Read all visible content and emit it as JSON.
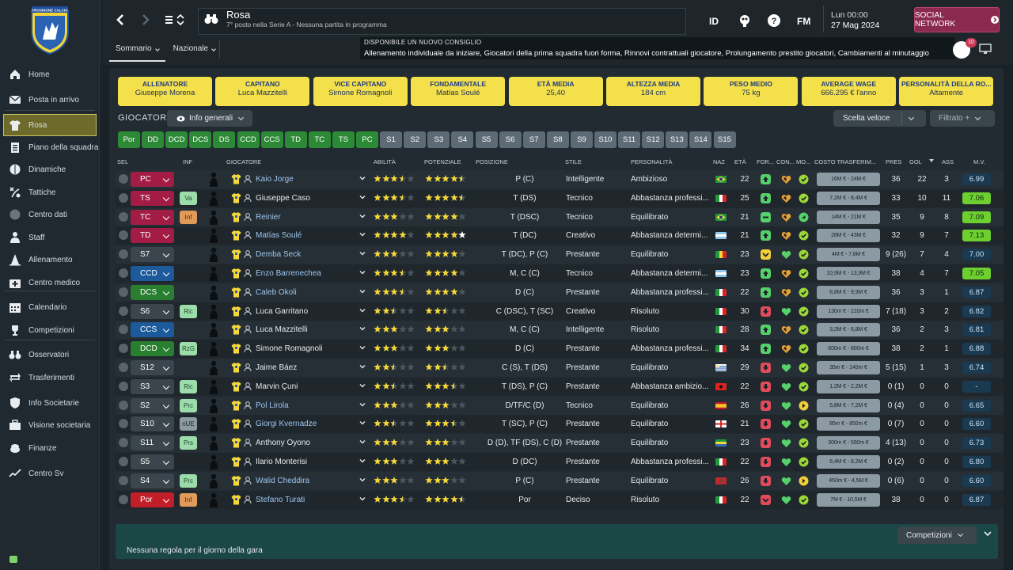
{
  "club": {
    "crest_text": "FROSINONE CALCIO"
  },
  "sidebar": {
    "items": [
      {
        "label": "Home",
        "icon": "home-icon"
      },
      {
        "label": "Posta in arrivo",
        "icon": "mail-icon"
      },
      {
        "label": "Rosa",
        "icon": "shirt-icon",
        "active": true
      },
      {
        "label": "Piano della squadra",
        "icon": "clipboard-icon"
      },
      {
        "label": "Dinamiche",
        "icon": "brain-icon"
      },
      {
        "label": "Tattiche",
        "icon": "tactics-icon"
      },
      {
        "label": "Centro dati",
        "icon": "data-icon"
      },
      {
        "label": "Staff",
        "icon": "staff-icon"
      },
      {
        "label": "Allenamento",
        "icon": "cone-icon"
      },
      {
        "label": "Centro medico",
        "icon": "medical-icon"
      },
      {
        "label": "Calendario",
        "icon": "calendar-icon"
      },
      {
        "label": "Competizioni",
        "icon": "trophy-icon"
      },
      {
        "label": "Osservatori",
        "icon": "binoculars-icon"
      },
      {
        "label": "Trasferimenti",
        "icon": "transfer-icon"
      },
      {
        "label": "Info Societarie",
        "icon": "shield-icon"
      },
      {
        "label": "Visione societaria",
        "icon": "briefcase-icon"
      },
      {
        "label": "Finanze",
        "icon": "money-icon"
      },
      {
        "label": "Centro Sv",
        "icon": "chart-icon"
      }
    ]
  },
  "header": {
    "title": "Rosa",
    "subtitle": "7° posto nella Serie A - Nessuna partita in programma",
    "time": "Lun 00:00",
    "date": "27 Mag 2024",
    "id_label": "ID",
    "fm_label": "FM",
    "social_label": "SOCIAL NETWORK",
    "tabs": [
      {
        "label": "Sommario"
      },
      {
        "label": "Nazionale"
      }
    ],
    "advice_title": "DISPONIBILE UN NUOVO CONSIGLIO",
    "advice_body": "Allenamento individuale da iniziare, Giocatori della prima squadra fuori forma, Rinnovi contrattuali giocatore, Prolungamento prestito giocatori, Cambiamenti al minutaggio",
    "advice_count": "10"
  },
  "cards": [
    {
      "label": "ALLENATORE",
      "value": "Giuseppe Morena"
    },
    {
      "label": "CAPITANO",
      "value": "Luca Mazzitelli"
    },
    {
      "label": "VICE CAPITANO",
      "value": "Simone Romagnoli"
    },
    {
      "label": "FONDAMENTALE",
      "value": "Matías Soulé"
    },
    {
      "label": "ETÀ MEDIA",
      "value": "25,40"
    },
    {
      "label": "ALTEZZA MEDIA",
      "value": "184 cm"
    },
    {
      "label": "PESO MEDIO",
      "value": "75 kg"
    },
    {
      "label": "AVERAGE WAGE",
      "value": "666.295 € l'anno"
    },
    {
      "label": "PERSONALITÀ DELLA RO...",
      "value": "Altamente"
    }
  ],
  "toolbar": {
    "section_label": "GIOCATORI",
    "view_label": "Info generali",
    "quick_label": "Scelta veloce",
    "filter_label": "Filtrato +"
  },
  "position_chips": [
    "Por",
    "DD",
    "DCD",
    "DCS",
    "DS",
    "CCD",
    "CCS",
    "TD",
    "TC",
    "TS",
    "PC",
    "S1",
    "S2",
    "S3",
    "S4",
    "S5",
    "S6",
    "S7",
    "S8",
    "S9",
    "S10",
    "S11",
    "S12",
    "S13",
    "S14",
    "S15"
  ],
  "columns": {
    "sel": "SEL",
    "inf": "INF",
    "player": "GIOCATORE",
    "ability": "ABILITÀ",
    "potential": "POTENZIALE",
    "position": "POSIZIONE",
    "style": "STILE",
    "personality": "PERSONALITÀ",
    "nat": "NAZ",
    "age": "ETÀ",
    "form": "FOR...",
    "cond": "CON...",
    "mor": "MO...",
    "value": "COSTO TRASFERIM...",
    "apps": "PRES",
    "goals": "GOL",
    "assists": "ASS",
    "rating": "M.V."
  },
  "players": [
    {
      "role": "PC",
      "role_color": "pc",
      "inf": "",
      "name": "Kaio Jorge",
      "link": true,
      "ab": 3.5,
      "po": 4.5,
      "pos": "P (C)",
      "style": "Intelligente",
      "pers": "Ambizioso",
      "flag": "br",
      "age": "22",
      "form": "up",
      "cond": "mid",
      "mor": "ok",
      "value": "16M € - 24M €",
      "apps": "36",
      "goals": "22",
      "ast": "3",
      "mv": "6.99",
      "mv_hi": false
    },
    {
      "role": "TS",
      "role_color": "pc",
      "inf": "Va",
      "inf_c": "g",
      "name": "Giuseppe Caso",
      "link": false,
      "ab": 3.5,
      "po": 4.5,
      "pos": "T (DS)",
      "style": "Tecnico",
      "pers": "Abbastanza professi...",
      "flag": "it",
      "age": "25",
      "form": "up",
      "cond": "mid",
      "mor": "ok",
      "value": "7,2M € - 8,4M €",
      "apps": "33",
      "goals": "10",
      "ast": "11",
      "mv": "7.06",
      "mv_hi": true
    },
    {
      "role": "TC",
      "role_color": "pc",
      "inf": "Inf",
      "inf_c": "o",
      "name": "Reinier",
      "link": true,
      "ab": 3,
      "po": 4,
      "pos": "T (DSC)",
      "style": "Tecnico",
      "pers": "Equilibrato",
      "flag": "br",
      "age": "21",
      "form": "eq",
      "cond": "mid",
      "mor": "up",
      "value": "14M € - 21M €",
      "apps": "35",
      "goals": "9",
      "ast": "8",
      "mv": "7.09",
      "mv_hi": true
    },
    {
      "role": "TD",
      "role_color": "pc",
      "inf": "",
      "name": "Matías Soulé",
      "link": true,
      "ab": 4,
      "po": 5,
      "pos": "T (DC)",
      "style": "Creativo",
      "pers": "Abbastanza determi...",
      "flag": "ar",
      "age": "21",
      "form": "up",
      "cond": "mid",
      "mor": "ok",
      "value": "28M € - 43M €",
      "apps": "32",
      "goals": "9",
      "ast": "7",
      "mv": "7.13",
      "mv_hi": true
    },
    {
      "role": "S7",
      "role_color": "gry",
      "inf": "",
      "name": "Demba Seck",
      "link": true,
      "ab": 3,
      "po": 4,
      "pos": "T (DC), P (C)",
      "style": "Prestante",
      "pers": "Equilibrato",
      "flag": "sn",
      "age": "23",
      "form": "mid",
      "cond": "high",
      "mor": "ok",
      "value": "4M € - 7,8M €",
      "apps": "9 (26)",
      "goals": "7",
      "ast": "4",
      "mv": "7.00",
      "mv_hi": false
    },
    {
      "role": "CCD",
      "role_color": "blu",
      "inf": "",
      "name": "Enzo Barrenechea",
      "link": true,
      "ab": 3.5,
      "po": 4,
      "pos": "M, C (C)",
      "style": "Tecnico",
      "pers": "Abbastanza determi...",
      "flag": "ar",
      "age": "23",
      "form": "up",
      "cond": "mid",
      "mor": "ok",
      "value": "10,9M € - 13,9M €",
      "apps": "38",
      "goals": "4",
      "ast": "7",
      "mv": "7.05",
      "mv_hi": true
    },
    {
      "role": "DCS",
      "role_color": "grn",
      "inf": "",
      "name": "Caleb Okoli",
      "link": true,
      "ab": 3.5,
      "po": 4,
      "pos": "D (C)",
      "style": "Prestante",
      "pers": "Abbastanza professi...",
      "flag": "it",
      "age": "22",
      "form": "up",
      "cond": "mid",
      "mor": "ok",
      "value": "8,8M € - 9,9M €",
      "apps": "36",
      "goals": "3",
      "ast": "1",
      "mv": "6.87",
      "mv_hi": false
    },
    {
      "role": "S6",
      "role_color": "gry",
      "inf": "Ric",
      "inf_c": "g",
      "name": "Luca Garritano",
      "link": false,
      "ab": 2.5,
      "po": 2.5,
      "pos": "C (DSC), T (SC)",
      "style": "Creativo",
      "pers": "Risoluto",
      "flag": "it",
      "age": "30",
      "form": "down",
      "cond": "high",
      "mor": "ok",
      "value": "130m € - 210m €",
      "apps": "7 (18)",
      "goals": "3",
      "ast": "2",
      "mv": "6.82",
      "mv_hi": false
    },
    {
      "role": "CCS",
      "role_color": "blu",
      "inf": "",
      "name": "Luca Mazzitelli",
      "link": false,
      "ab": 3,
      "po": 3,
      "pos": "M, C (C)",
      "style": "Intelligente",
      "pers": "Risoluto",
      "flag": "it",
      "age": "28",
      "form": "up",
      "cond": "mid",
      "mor": "ok",
      "value": "3,2M € - 6,8M €",
      "apps": "36",
      "goals": "2",
      "ast": "3",
      "mv": "6.81",
      "mv_hi": false
    },
    {
      "role": "DCD",
      "role_color": "grn",
      "inf": "RzG",
      "inf_c": "g",
      "name": "Simone Romagnoli",
      "link": false,
      "ab": 3,
      "po": 3,
      "pos": "D (C)",
      "style": "Prestante",
      "pers": "Abbastanza professi...",
      "flag": "it",
      "age": "34",
      "form": "up",
      "cond": "mid",
      "mor": "ok",
      "value": "600m € - 800m €",
      "apps": "38",
      "goals": "2",
      "ast": "1",
      "mv": "6.88",
      "mv_hi": false
    },
    {
      "role": "S12",
      "role_color": "gry",
      "inf": "",
      "name": "Jaime Báez",
      "link": false,
      "ab": 2.5,
      "po": 2.5,
      "pos": "C (S), T (DS)",
      "style": "Prestante",
      "pers": "Equilibrato",
      "flag": "uy",
      "age": "29",
      "form": "down",
      "cond": "high",
      "mor": "ok",
      "value": "35m € - 140m €",
      "apps": "5 (15)",
      "goals": "1",
      "ast": "3",
      "mv": "6.74",
      "mv_hi": false
    },
    {
      "role": "S3",
      "role_color": "gry",
      "inf": "Ric",
      "inf_c": "g",
      "name": "Marvin Çuni",
      "link": false,
      "ab": 2.5,
      "po": 3.5,
      "pos": "T (DS), P (C)",
      "style": "Prestante",
      "pers": "Abbastanza ambizio...",
      "flag": "al",
      "age": "22",
      "form": "down",
      "cond": "high",
      "mor": "ok",
      "value": "1,2M € - 2,2M €",
      "apps": "0 (1)",
      "goals": "0",
      "ast": "0",
      "mv": "-",
      "mv_hi": false
    },
    {
      "role": "S2",
      "role_color": "gry",
      "inf": "Prc",
      "inf_c": "g",
      "name": "Pol Lirola",
      "link": true,
      "ab": 3,
      "po": 3,
      "pos": "D/TF/C (D)",
      "style": "Tecnico",
      "pers": "Equilibrato",
      "flag": "es",
      "age": "26",
      "form": "down",
      "cond": "high",
      "mor": "right",
      "value": "5,8M € - 7,2M €",
      "apps": "0 (4)",
      "goals": "0",
      "ast": "0",
      "mv": "6.65",
      "mv_hi": false
    },
    {
      "role": "S10",
      "role_color": "gry",
      "inf": "nUE",
      "inf_c": "gy",
      "name": "Giorgi Kvernadze",
      "link": true,
      "ab": 2.5,
      "po": 3.5,
      "pos": "T (SC), P (C)",
      "style": "Prestante",
      "pers": "Equilibrato",
      "flag": "ge",
      "age": "21",
      "form": "down",
      "cond": "high",
      "mor": "ok",
      "value": "85m € - 850m €",
      "apps": "0 (7)",
      "goals": "0",
      "ast": "0",
      "mv": "6.60",
      "mv_hi": false
    },
    {
      "role": "S11",
      "role_color": "gry",
      "inf": "Prs",
      "inf_c": "g",
      "name": "Anthony Oyono",
      "link": false,
      "ab": 3,
      "po": 3,
      "pos": "D (D), TF (DS), C (D)",
      "style": "Prestante",
      "pers": "Equilibrato",
      "flag": "ga",
      "age": "23",
      "form": "down",
      "cond": "high",
      "mor": "ok",
      "value": "300m € - 550m €",
      "apps": "4 (13)",
      "goals": "0",
      "ast": "0",
      "mv": "6.73",
      "mv_hi": false
    },
    {
      "role": "S5",
      "role_color": "gry",
      "inf": "",
      "name": "Ilario Monterisi",
      "link": false,
      "ab": 3,
      "po": 3,
      "pos": "D (DC)",
      "style": "Prestante",
      "pers": "Abbastanza professi...",
      "flag": "it",
      "age": "22",
      "form": "down",
      "cond": "high",
      "mor": "ok",
      "value": "6,4M € - 8,2M €",
      "apps": "0 (2)",
      "goals": "0",
      "ast": "0",
      "mv": "6.80",
      "mv_hi": false
    },
    {
      "role": "S4",
      "role_color": "gry",
      "inf": "Prc",
      "inf_c": "g",
      "name": "Walid Cheddira",
      "link": true,
      "ab": 3,
      "po": 3,
      "pos": "P (C)",
      "style": "Prestante",
      "pers": "Equilibrato",
      "flag": "ma",
      "age": "26",
      "form": "down",
      "cond": "high",
      "mor": "right",
      "value": "450m € - 4,5M €",
      "apps": "0 (6)",
      "goals": "0",
      "ast": "0",
      "mv": "6.60",
      "mv_hi": false
    },
    {
      "role": "Por",
      "role_color": "por",
      "inf": "Inf",
      "inf_c": "o",
      "name": "Stefano Turati",
      "link": true,
      "ab": 3.5,
      "po": 4.5,
      "pos": "Por",
      "style": "Deciso",
      "pers": "Risoluto",
      "flag": "it",
      "age": "22",
      "form": "dn",
      "cond": "high",
      "mor": "ok",
      "value": "7M € - 10,5M €",
      "apps": "38",
      "goals": "0",
      "ast": "0",
      "mv": "6.87",
      "mv_hi": false
    }
  ],
  "footer": {
    "text": "Nessuna regola per il giorno della gara",
    "competition_label": "Competizioni"
  }
}
